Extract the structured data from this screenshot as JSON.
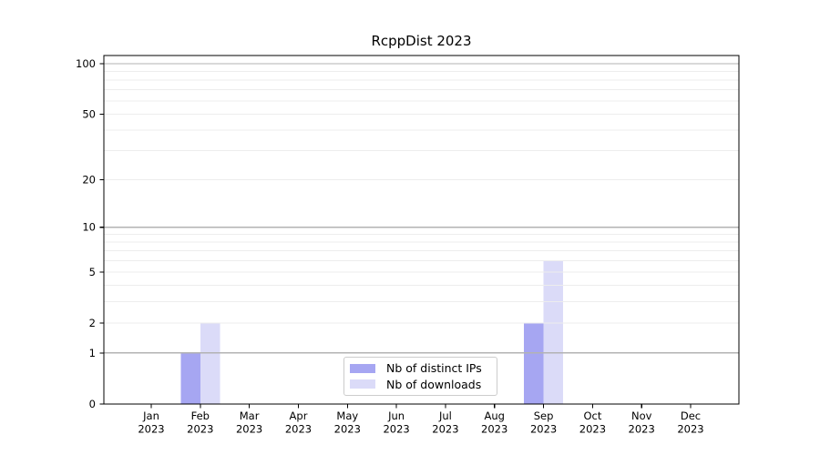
{
  "chart_data": {
    "type": "bar",
    "title": "RcppDist 2023",
    "x": {
      "months": [
        "Jan",
        "Feb",
        "Mar",
        "Apr",
        "May",
        "Jun",
        "Jul",
        "Aug",
        "Sep",
        "Oct",
        "Nov",
        "Dec"
      ],
      "year": "2023"
    },
    "categories": [
      "Jan 2023",
      "Feb 2023",
      "Mar 2023",
      "Apr 2023",
      "May 2023",
      "Jun 2023",
      "Jul 2023",
      "Aug 2023",
      "Sep 2023",
      "Oct 2023",
      "Nov 2023",
      "Dec 2023"
    ],
    "series": [
      {
        "name": "Nb of distinct IPs",
        "color": "#a6a6f2",
        "values": [
          0,
          1,
          0,
          0,
          0,
          0,
          0,
          0,
          2,
          0,
          0,
          0
        ]
      },
      {
        "name": "Nb of downloads",
        "color": "#dbdbf8",
        "values": [
          0,
          2,
          0,
          0,
          0,
          0,
          0,
          0,
          6,
          0,
          0,
          0
        ]
      }
    ],
    "y_axis": {
      "scale": "log1p",
      "tick_values": [
        0,
        1,
        2,
        5,
        10,
        20,
        50,
        100
      ],
      "ylim": [
        0,
        112
      ],
      "major_grid_at": [
        1,
        10,
        100
      ],
      "minor_grid_at": [
        2,
        3,
        4,
        5,
        6,
        7,
        8,
        9,
        20,
        30,
        40,
        50,
        60,
        70,
        80,
        90
      ]
    },
    "legend": {
      "entries": [
        "Nb of distinct IPs",
        "Nb of downloads"
      ],
      "position": "inside lower-center"
    },
    "grid": true,
    "colors": {
      "background": "#ffffff",
      "axis": "#000000",
      "major_grid": "#b3b3b3",
      "minor_grid": "#ededed",
      "text": "#000000",
      "legend_border": "#cccccc"
    }
  }
}
